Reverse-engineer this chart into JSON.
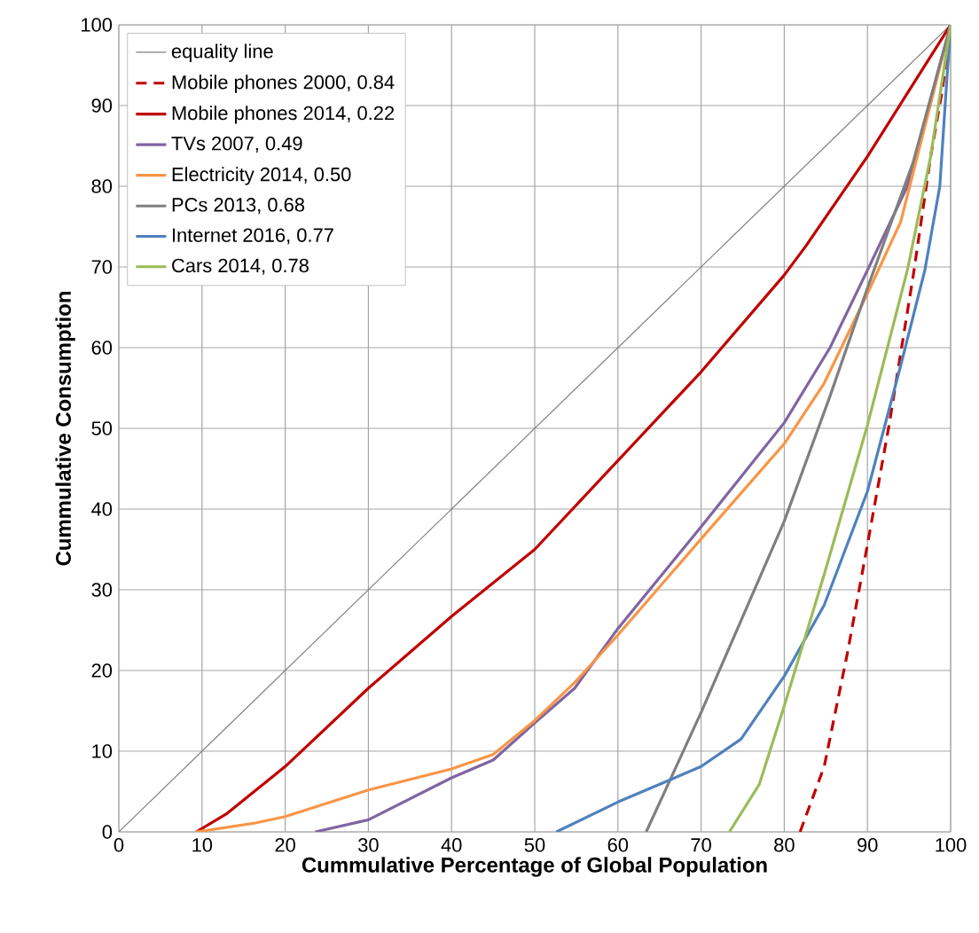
{
  "chart_data": {
    "type": "line",
    "xlabel": "Cummulative Percentage of Global Population",
    "ylabel": "Cummulative Consumption",
    "xlim": [
      0,
      100
    ],
    "ylim": [
      0,
      100
    ],
    "xticks": [
      0,
      10,
      20,
      30,
      40,
      50,
      60,
      70,
      80,
      90,
      100
    ],
    "yticks": [
      0,
      10,
      20,
      30,
      40,
      50,
      60,
      70,
      80,
      90,
      100
    ],
    "grid": true,
    "legend": "top left",
    "marker": "none",
    "line_style": "solid",
    "series": [
      {
        "name": "equality line",
        "color": "#7f7f7f",
        "x": [
          0,
          100
        ],
        "values": [
          0,
          100
        ]
      },
      {
        "name": "Mobile phones 2000, 0.84",
        "color": "#c00000",
        "line_style": "dashed",
        "x": [
          81.9,
          84.8,
          87.6,
          90,
          92.6,
          95.5,
          97.6,
          99,
          100
        ],
        "values": [
          0,
          8.1,
          22.2,
          35.6,
          50.4,
          68.9,
          83.7,
          91.9,
          100
        ]
      },
      {
        "name": "Mobile phones 2014, 0.22",
        "color": "#c00000",
        "x": [
          9.3,
          12.9,
          20,
          30,
          40,
          50,
          60,
          70,
          80,
          82.6,
          90,
          100
        ],
        "values": [
          0,
          2.2,
          8.1,
          17.8,
          26.7,
          35,
          46,
          57,
          69,
          72.6,
          83.7,
          100
        ]
      },
      {
        "name": "TVs 2007, 0.49",
        "color": "#8064a2",
        "x": [
          23.6,
          30,
          40,
          45,
          50,
          54.8,
          60,
          70,
          80,
          85.5,
          90,
          94.8,
          100
        ],
        "values": [
          0,
          1.5,
          6.7,
          8.9,
          13.5,
          17.8,
          25.2,
          37.8,
          50.7,
          60,
          69.6,
          80,
          100
        ]
      },
      {
        "name": "Electricity 2014, 0.50",
        "color": "#f79646",
        "x": [
          9.3,
          16.4,
          20,
          30,
          40,
          45,
          50,
          54.8,
          60,
          70,
          80,
          84.8,
          90,
          94,
          100
        ],
        "values": [
          0,
          1.1,
          1.9,
          5.2,
          7.8,
          9.6,
          13.8,
          18.5,
          24.4,
          36.3,
          48.1,
          55.6,
          66.7,
          75.6,
          100
        ]
      },
      {
        "name": "PCs 2013, 0.68",
        "color": "#7f7f7f",
        "x": [
          63.4,
          70,
          80,
          85.5,
          90,
          95.5,
          100
        ],
        "values": [
          0,
          14.8,
          38.5,
          54,
          67.4,
          83,
          100
        ]
      },
      {
        "name": "Internet 2016, 0.77",
        "color": "#4f81bd",
        "x": [
          52.6,
          60,
          70,
          74.8,
          80,
          84.8,
          90,
          94,
          96.9,
          98.7,
          99.4,
          100
        ],
        "values": [
          0,
          3.7,
          8.1,
          11.5,
          19.3,
          28.1,
          42.2,
          57.8,
          69.6,
          80,
          91,
          100
        ]
      },
      {
        "name": "Cars 2014, 0.78",
        "color": "#9bbb59",
        "x": [
          73.4,
          77,
          80,
          84.8,
          90,
          94.8,
          97.6,
          100
        ],
        "values": [
          0,
          5.9,
          15.6,
          31.9,
          50.4,
          69.6,
          83.7,
          100
        ]
      }
    ]
  }
}
